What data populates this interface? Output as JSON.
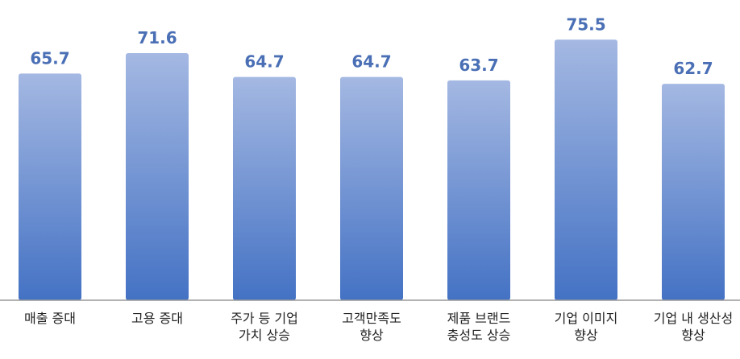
{
  "chart_data": {
    "type": "bar",
    "categories": [
      "매출 증대",
      "고용 증대",
      "주가 등 기업\n가치 상승",
      "고객만족도\n향상",
      "제품 브랜드\n충성도 상승",
      "기업 이미지\n향상",
      "기업 내 생산성\n향상"
    ],
    "values": [
      65.7,
      71.6,
      64.7,
      64.7,
      63.7,
      75.5,
      62.7
    ],
    "color": "#4472c4",
    "ylim": [
      0,
      87
    ]
  }
}
